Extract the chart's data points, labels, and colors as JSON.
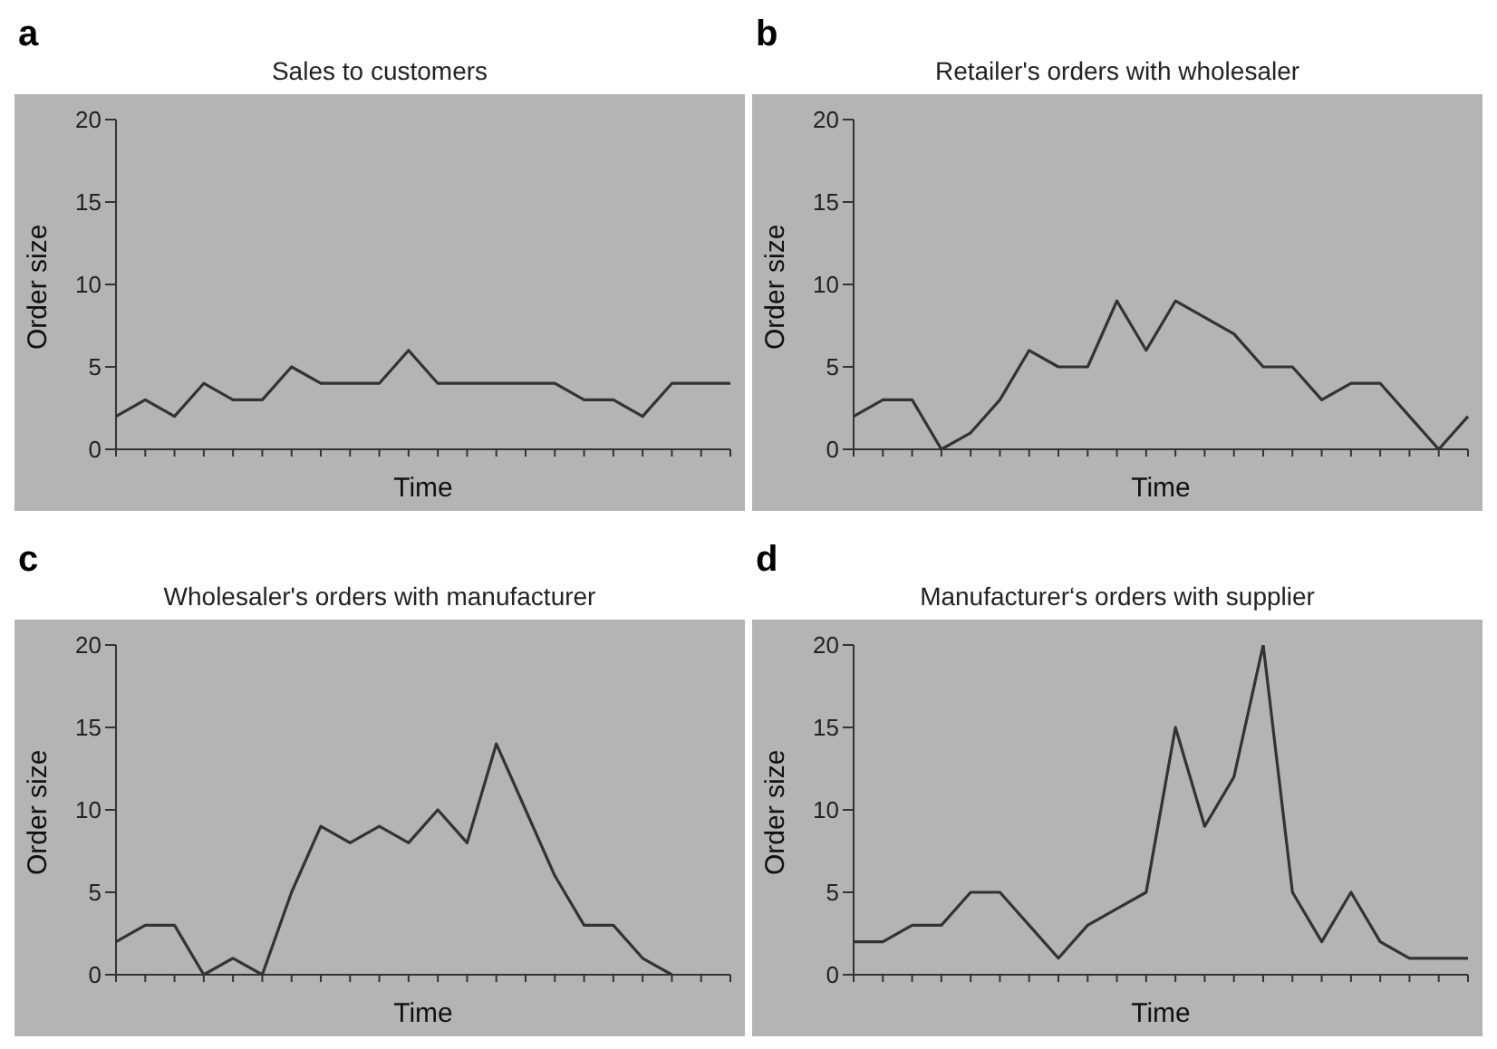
{
  "chart_data": [
    {
      "type": "line",
      "title": "Sales to customers",
      "xlabel": "Time",
      "ylabel": "Order size",
      "annotations": [
        "a"
      ],
      "categories": [
        null,
        null,
        null,
        null,
        null,
        null,
        null,
        null,
        null,
        null,
        null,
        null,
        null,
        null,
        null,
        null,
        null,
        null,
        null,
        null,
        null,
        null
      ],
      "series": [
        {
          "color": "#333333",
          "values": [
            2,
            3,
            2,
            4,
            3,
            3,
            5,
            4,
            4,
            4,
            6,
            4,
            4,
            4,
            4,
            4,
            3,
            3,
            2,
            4,
            4,
            4
          ]
        }
      ],
      "ylim": [
        0,
        20
      ],
      "yticks": [
        0,
        5,
        10,
        15,
        20
      ],
      "tick_labels": "y"
    },
    {
      "type": "line",
      "title": "Retailer's orders with wholesaler",
      "xlabel": "Time",
      "ylabel": "Order size",
      "annotations": [
        "b"
      ],
      "categories": [
        null,
        null,
        null,
        null,
        null,
        null,
        null,
        null,
        null,
        null,
        null,
        null,
        null,
        null,
        null,
        null,
        null,
        null,
        null,
        null,
        null,
        null
      ],
      "series": [
        {
          "color": "#333333",
          "values": [
            2,
            3,
            3,
            0,
            1,
            3,
            6,
            5,
            5,
            9,
            6,
            9,
            8,
            7,
            5,
            5,
            3,
            4,
            4,
            2,
            0,
            2
          ]
        }
      ],
      "ylim": [
        0,
        20
      ],
      "yticks": [
        0,
        5,
        10,
        15,
        20
      ],
      "tick_labels": "y"
    },
    {
      "type": "line",
      "title": "Wholesaler's orders with manufacturer",
      "xlabel": "Time",
      "ylabel": "Order size",
      "annotations": [
        "c"
      ],
      "categories": [
        null,
        null,
        null,
        null,
        null,
        null,
        null,
        null,
        null,
        null,
        null,
        null,
        null,
        null,
        null,
        null,
        null,
        null,
        null,
        null,
        null,
        null
      ],
      "series": [
        {
          "color": "#333333",
          "values": [
            2,
            3,
            3,
            0,
            1,
            0,
            5,
            9,
            8,
            9,
            8,
            10,
            8,
            14,
            10,
            6,
            3,
            3,
            1,
            0,
            null,
            null
          ]
        }
      ],
      "ylim": [
        0,
        20
      ],
      "yticks": [
        0,
        5,
        10,
        15,
        20
      ],
      "tick_labels": "y"
    },
    {
      "type": "line",
      "title": "Manufacturer‘s orders with supplier",
      "xlabel": "Time",
      "ylabel": "Order size",
      "annotations": [
        "d"
      ],
      "categories": [
        null,
        null,
        null,
        null,
        null,
        null,
        null,
        null,
        null,
        null,
        null,
        null,
        null,
        null,
        null,
        null,
        null,
        null,
        null,
        null,
        null,
        null
      ],
      "series": [
        {
          "color": "#333333",
          "values": [
            2,
            2,
            3,
            3,
            5,
            5,
            3,
            1,
            3,
            4,
            5,
            15,
            9,
            12,
            20,
            5,
            2,
            5,
            2,
            1,
            1,
            1
          ]
        }
      ],
      "ylim": [
        0,
        20
      ],
      "yticks": [
        0,
        5,
        10,
        15,
        20
      ],
      "tick_labels": "y"
    }
  ]
}
